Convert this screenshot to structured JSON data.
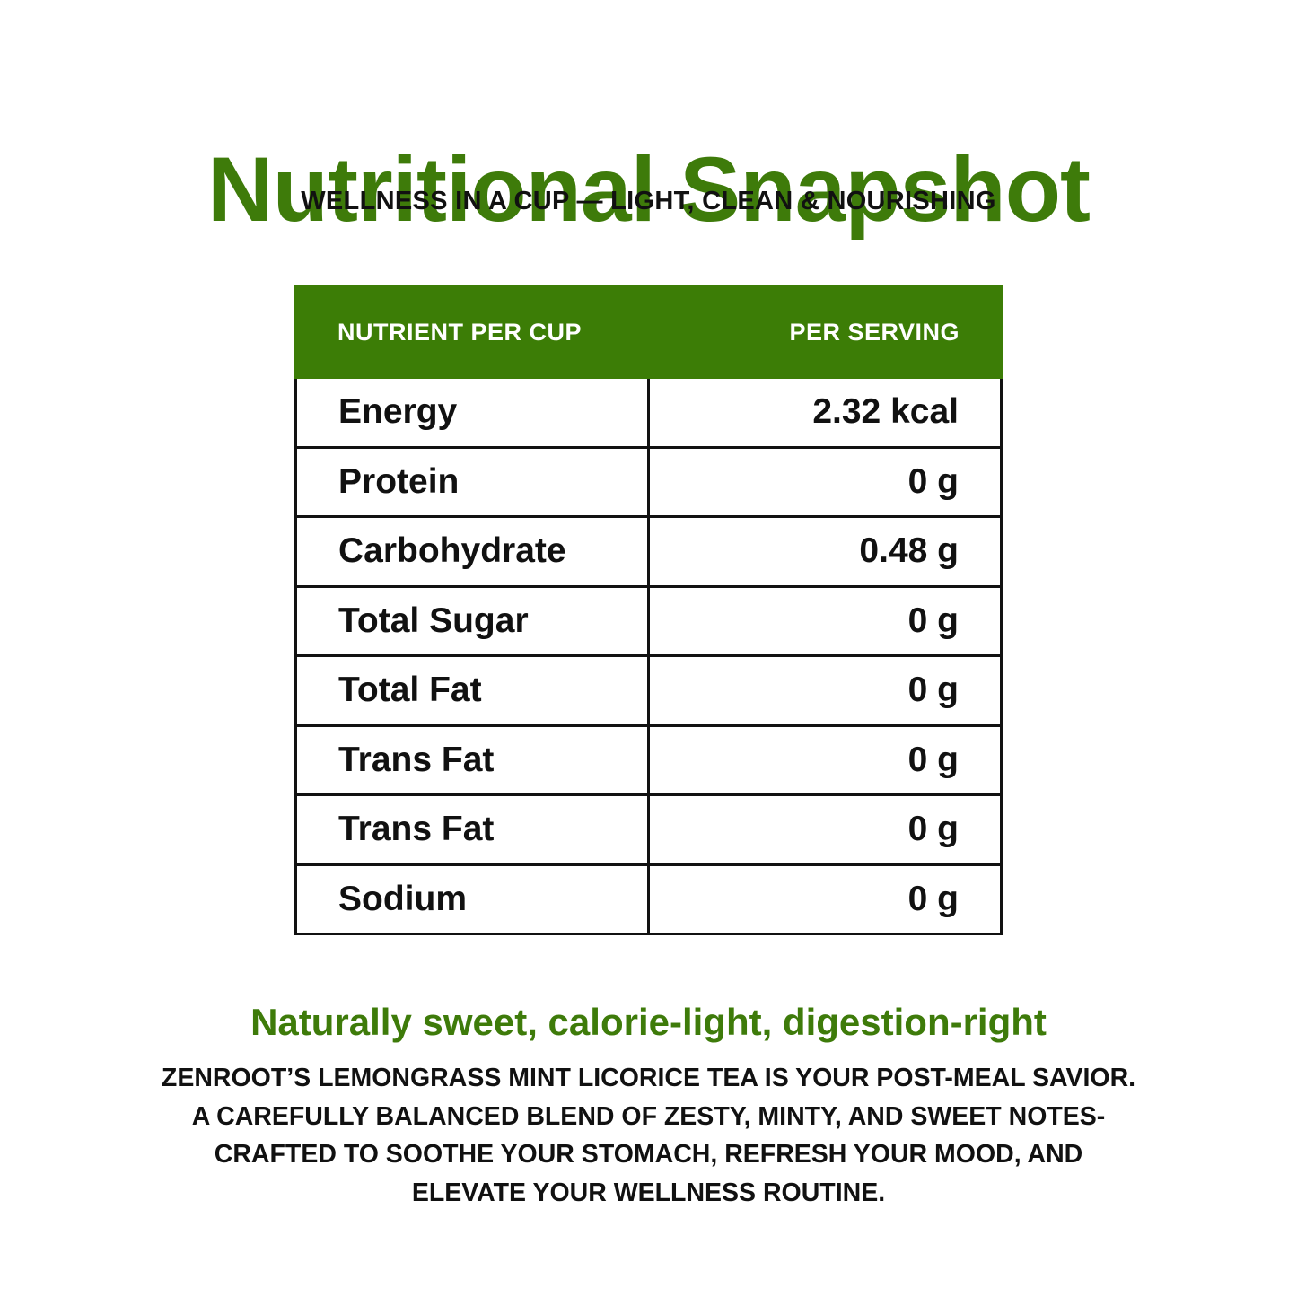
{
  "header": {
    "title": "Nutritional Snapshot",
    "subtitle": "WELLNESS IN A CUP — LIGHT, CLEAN & NOURISHING"
  },
  "table": {
    "columns": [
      "NUTRIENT PER CUP",
      "PER SERVING"
    ],
    "rows": [
      {
        "nutrient": "Energy",
        "value": "2.32 kcal"
      },
      {
        "nutrient": "Protein",
        "value": "0 g"
      },
      {
        "nutrient": "Carbohydrate",
        "value": "0.48 g"
      },
      {
        "nutrient": "Total Sugar",
        "value": "0 g"
      },
      {
        "nutrient": "Total Fat",
        "value": "0 g"
      },
      {
        "nutrient": "Trans Fat",
        "value": "0 g"
      },
      {
        "nutrient": "Trans Fat",
        "value": "0 g"
      },
      {
        "nutrient": "Sodium",
        "value": "0 g"
      }
    ]
  },
  "footer": {
    "tagline": "Naturally sweet, calorie-light, digestion-right",
    "description_lines": [
      "ZENROOT’S LEMONGRASS MINT LICORICE TEA IS YOUR POST-MEAL SAVIOR.",
      "A CAREFULLY BALANCED BLEND OF ZESTY, MINTY, AND SWEET NOTES-",
      "CRAFTED TO SOOTHE YOUR STOMACH, REFRESH YOUR MOOD, AND",
      "ELEVATE YOUR WELLNESS ROUTINE."
    ]
  },
  "colors": {
    "brand_green": "#3e7b0a",
    "header_green": "#3c7d06",
    "text": "#111111",
    "background": "#ffffff"
  }
}
